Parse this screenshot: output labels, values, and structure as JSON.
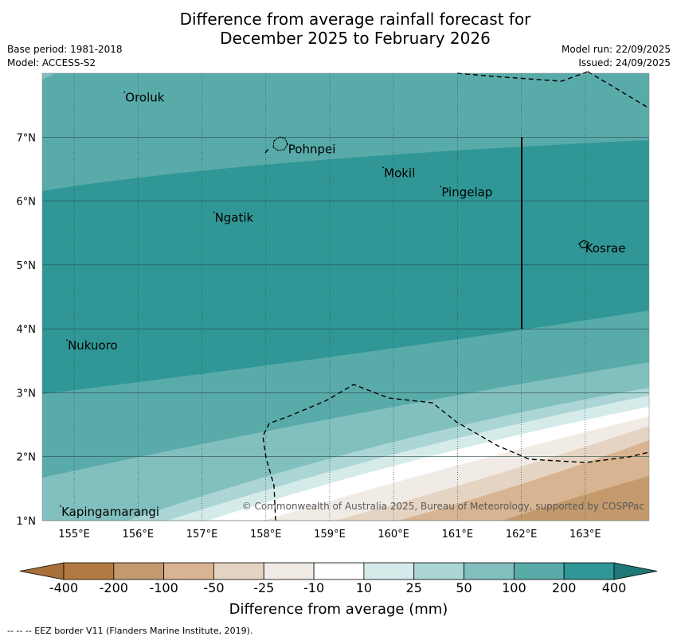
{
  "title": {
    "line1": "Difference from average rainfall forecast for",
    "line2": "December 2025 to February 2026"
  },
  "meta": {
    "base_period": "Base period: 1981-2018",
    "model": "Model: ACCESS-S2",
    "model_run": "Model run: 22/09/2025",
    "issued": "Issued: 24/09/2025"
  },
  "axes": {
    "lon_ticks": [
      {
        "value": 155,
        "label": "155°E"
      },
      {
        "value": 156,
        "label": "156°E"
      },
      {
        "value": 157,
        "label": "157°E"
      },
      {
        "value": 158,
        "label": "158°E"
      },
      {
        "value": 159,
        "label": "159°E"
      },
      {
        "value": 160,
        "label": "160°E"
      },
      {
        "value": 161,
        "label": "161°E"
      },
      {
        "value": 162,
        "label": "162°E"
      },
      {
        "value": 163,
        "label": "163°E"
      }
    ],
    "lat_ticks": [
      {
        "value": 1,
        "label": "1°N"
      },
      {
        "value": 2,
        "label": "2°N"
      },
      {
        "value": 3,
        "label": "3°N"
      },
      {
        "value": 4,
        "label": "4°N"
      },
      {
        "value": 5,
        "label": "5°N"
      },
      {
        "value": 6,
        "label": "6°N"
      },
      {
        "value": 7,
        "label": "7°N"
      }
    ],
    "lon_range": [
      154.5,
      164.0
    ],
    "lat_range": [
      1.0,
      8.0
    ]
  },
  "places": [
    {
      "name": "Oroluk",
      "lon": 155.8,
      "lat": 7.63
    },
    {
      "name": "Pohnpei",
      "lon": 158.35,
      "lat": 6.82
    },
    {
      "name": "Mokil",
      "lon": 159.85,
      "lat": 6.45
    },
    {
      "name": "Pingelap",
      "lon": 160.75,
      "lat": 6.15
    },
    {
      "name": "Ngatik",
      "lon": 157.2,
      "lat": 5.75
    },
    {
      "name": "Kosrae",
      "lon": 163.0,
      "lat": 5.27
    },
    {
      "name": "Nukuoro",
      "lon": 154.9,
      "lat": 3.75
    },
    {
      "name": "Kapingamarangi",
      "lon": 154.8,
      "lat": 1.15
    }
  ],
  "copyright": "© Commonwealth of Australia 2025, Bureau of Meteorology, supported by COSPPac",
  "colorbar": {
    "label": "Difference from average (mm)",
    "ticks": [
      "-400",
      "-200",
      "-100",
      "-50",
      "-25",
      "-10",
      "10",
      "25",
      "50",
      "100",
      "200",
      "400"
    ],
    "colors": [
      "#a87038",
      "#b27a43",
      "#c49a6c",
      "#d8b492",
      "#e6d4c2",
      "#f1ebe6",
      "#ffffff",
      "#d5ebea",
      "#abd6d5",
      "#82c0bf",
      "#59abaa",
      "#309796",
      "#1d7877"
    ]
  },
  "footer": "--  --  -- EEZ border V11 (Flanders Marine Institute, 2019)."
}
